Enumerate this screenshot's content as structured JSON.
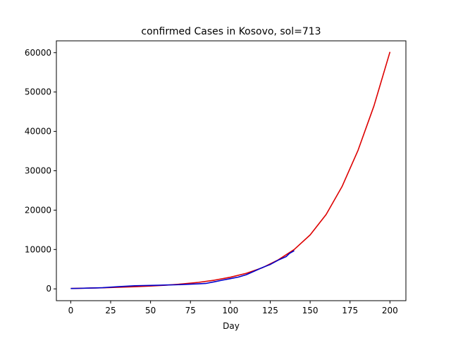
{
  "chart_data": {
    "type": "line",
    "title": "confirmed Cases in Kosovo, sol=713",
    "xlabel": "Day",
    "ylabel": "",
    "xlim": [
      -9,
      210
    ],
    "ylim": [
      -3000,
      63000
    ],
    "xticks": [
      0,
      25,
      50,
      75,
      100,
      125,
      150,
      175,
      200
    ],
    "yticks": [
      0,
      10000,
      20000,
      30000,
      40000,
      50000,
      60000
    ],
    "grid": false,
    "series": [
      {
        "color": "#dd0000",
        "x": [
          0,
          10,
          20,
          30,
          40,
          50,
          60,
          70,
          80,
          90,
          100,
          110,
          120,
          130,
          140,
          150,
          160,
          170,
          180,
          190,
          200
        ],
        "y": [
          100,
          180,
          280,
          400,
          550,
          720,
          950,
          1250,
          1650,
          2200,
          2950,
          3950,
          5350,
          7350,
          10000,
          13700,
          18900,
          26000,
          35200,
          46500,
          60200
        ]
      },
      {
        "color": "#0000cc",
        "x": [
          0,
          5,
          10,
          15,
          20,
          25,
          30,
          35,
          40,
          45,
          50,
          55,
          60,
          65,
          70,
          75,
          80,
          85,
          90,
          95,
          100,
          105,
          110,
          115,
          120,
          125,
          130,
          135,
          137,
          140
        ],
        "y": [
          100,
          130,
          180,
          230,
          300,
          430,
          560,
          680,
          800,
          850,
          880,
          920,
          980,
          1030,
          1100,
          1180,
          1280,
          1400,
          1800,
          2200,
          2600,
          3000,
          3600,
          4500,
          5400,
          6200,
          7300,
          8200,
          9000,
          9700
        ]
      }
    ]
  }
}
